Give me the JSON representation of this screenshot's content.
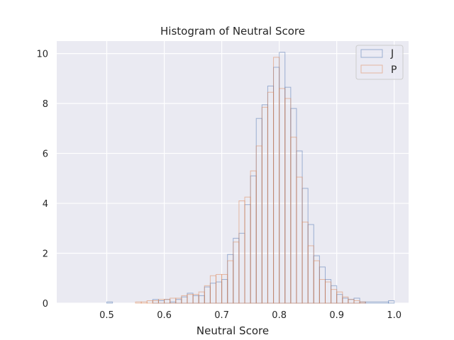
{
  "chart_data": {
    "type": "histogram",
    "title": "Histogram of Neutral Score",
    "xlabel": "Neutral Score",
    "ylabel": "",
    "xlim": [
      0.413,
      1.025
    ],
    "ylim": [
      0,
      10.5
    ],
    "xticks": [
      0.5,
      0.6,
      0.7,
      0.8,
      0.9,
      1.0
    ],
    "xtick_labels": [
      "0.5",
      "0.6",
      "0.7",
      "0.8",
      "0.9",
      "1.0"
    ],
    "yticks": [
      0,
      2,
      4,
      6,
      8,
      10
    ],
    "ytick_labels": [
      "0",
      "2",
      "4",
      "6",
      "8",
      "10"
    ],
    "grid": true,
    "legend_position": "top-right",
    "series": [
      {
        "name": "J",
        "color": "#4c72b0",
        "bins": [
          [
            0.5,
            0.51,
            0.05
          ],
          [
            0.51,
            0.58,
            0.0
          ],
          [
            0.58,
            0.59,
            0.15
          ],
          [
            0.59,
            0.6,
            0.1
          ],
          [
            0.6,
            0.61,
            0.15
          ],
          [
            0.61,
            0.62,
            0.05
          ],
          [
            0.62,
            0.63,
            0.15
          ],
          [
            0.63,
            0.64,
            0.25
          ],
          [
            0.64,
            0.65,
            0.4
          ],
          [
            0.65,
            0.66,
            0.3
          ],
          [
            0.66,
            0.67,
            0.3
          ],
          [
            0.67,
            0.68,
            0.65
          ],
          [
            0.68,
            0.69,
            0.8
          ],
          [
            0.69,
            0.7,
            0.85
          ],
          [
            0.7,
            0.71,
            0.95
          ],
          [
            0.71,
            0.72,
            1.95
          ],
          [
            0.72,
            0.73,
            2.6
          ],
          [
            0.73,
            0.74,
            2.8
          ],
          [
            0.74,
            0.75,
            3.95
          ],
          [
            0.75,
            0.76,
            5.1
          ],
          [
            0.76,
            0.77,
            7.4
          ],
          [
            0.77,
            0.78,
            7.95
          ],
          [
            0.78,
            0.79,
            8.7
          ],
          [
            0.79,
            0.8,
            9.45
          ],
          [
            0.8,
            0.81,
            10.05
          ],
          [
            0.81,
            0.82,
            8.65
          ],
          [
            0.82,
            0.83,
            7.8
          ],
          [
            0.83,
            0.84,
            6.1
          ],
          [
            0.84,
            0.85,
            4.6
          ],
          [
            0.85,
            0.86,
            3.15
          ],
          [
            0.86,
            0.87,
            1.9
          ],
          [
            0.87,
            0.88,
            1.45
          ],
          [
            0.88,
            0.89,
            0.95
          ],
          [
            0.89,
            0.9,
            0.7
          ],
          [
            0.9,
            0.91,
            0.35
          ],
          [
            0.91,
            0.92,
            0.2
          ],
          [
            0.92,
            0.93,
            0.15
          ],
          [
            0.93,
            0.94,
            0.2
          ],
          [
            0.94,
            0.95,
            0.05
          ],
          [
            0.95,
            0.99,
            0.05
          ],
          [
            0.99,
            1.0,
            0.1
          ]
        ]
      },
      {
        "name": "P",
        "color": "#dd8452",
        "bins": [
          [
            0.55,
            0.56,
            0.05
          ],
          [
            0.56,
            0.57,
            0.05
          ],
          [
            0.57,
            0.58,
            0.1
          ],
          [
            0.58,
            0.59,
            0.1
          ],
          [
            0.59,
            0.6,
            0.15
          ],
          [
            0.6,
            0.61,
            0.15
          ],
          [
            0.61,
            0.62,
            0.2
          ],
          [
            0.62,
            0.63,
            0.2
          ],
          [
            0.63,
            0.64,
            0.3
          ],
          [
            0.64,
            0.65,
            0.35
          ],
          [
            0.65,
            0.66,
            0.35
          ],
          [
            0.66,
            0.67,
            0.45
          ],
          [
            0.67,
            0.68,
            0.7
          ],
          [
            0.68,
            0.69,
            1.1
          ],
          [
            0.69,
            0.7,
            1.15
          ],
          [
            0.7,
            0.71,
            1.15
          ],
          [
            0.71,
            0.72,
            1.7
          ],
          [
            0.72,
            0.73,
            2.45
          ],
          [
            0.73,
            0.74,
            4.1
          ],
          [
            0.74,
            0.75,
            4.25
          ],
          [
            0.75,
            0.76,
            5.3
          ],
          [
            0.76,
            0.77,
            6.3
          ],
          [
            0.77,
            0.78,
            7.85
          ],
          [
            0.78,
            0.79,
            8.45
          ],
          [
            0.79,
            0.8,
            9.85
          ],
          [
            0.8,
            0.81,
            8.6
          ],
          [
            0.81,
            0.82,
            8.2
          ],
          [
            0.82,
            0.83,
            6.65
          ],
          [
            0.83,
            0.84,
            5.05
          ],
          [
            0.84,
            0.85,
            3.25
          ],
          [
            0.85,
            0.86,
            2.3
          ],
          [
            0.86,
            0.87,
            1.7
          ],
          [
            0.87,
            0.88,
            0.95
          ],
          [
            0.88,
            0.89,
            0.85
          ],
          [
            0.89,
            0.9,
            0.55
          ],
          [
            0.9,
            0.91,
            0.45
          ],
          [
            0.91,
            0.92,
            0.25
          ],
          [
            0.92,
            0.93,
            0.15
          ],
          [
            0.93,
            0.94,
            0.1
          ],
          [
            0.94,
            0.95,
            0.05
          ]
        ]
      }
    ]
  }
}
